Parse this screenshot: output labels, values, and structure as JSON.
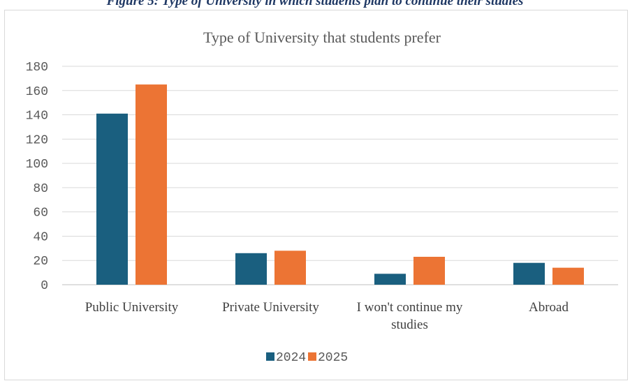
{
  "figure_caption": "Figure 5: Type of University in which students plan to continue their studies",
  "chart_data": {
    "type": "bar",
    "title": "Type of University that students prefer",
    "categories": [
      [
        "Public University"
      ],
      [
        "Private University"
      ],
      [
        "I won't continue my",
        "studies"
      ],
      [
        "Abroad"
      ]
    ],
    "series": [
      {
        "name": "2024",
        "color": "#1a5f7f",
        "values": [
          141,
          26,
          9,
          18
        ]
      },
      {
        "name": "2025",
        "color": "#ec7434",
        "values": [
          165,
          28,
          23,
          14
        ]
      }
    ],
    "yticks": [
      0,
      20,
      40,
      60,
      80,
      100,
      120,
      140,
      160,
      180
    ],
    "ylim": [
      0,
      180
    ],
    "gridlines": true,
    "legend_position": "bottom"
  }
}
